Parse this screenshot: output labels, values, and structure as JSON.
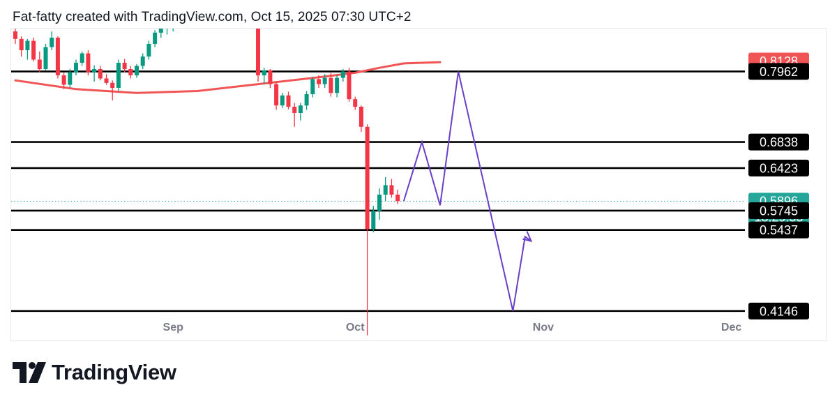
{
  "header": {
    "text": "Fat-fatty created with TradingView.com, Oct 15, 2025 07:30 UTC+2"
  },
  "brand": {
    "name": "TradingView"
  },
  "colors": {
    "up": "#089981",
    "down": "#f23645",
    "ma": "#f05454",
    "path": "#6a3fc8",
    "level": "#000000",
    "text": "#131722",
    "axis_text": "#787b86",
    "current": "#26a69a"
  },
  "chart_data": {
    "type": "candlestick",
    "x_axis": {
      "ticks": [
        "Sep",
        "Oct",
        "Nov",
        "Dec"
      ]
    },
    "y_axis": {
      "scale": "linear",
      "range": [
        0.37,
        0.86
      ]
    },
    "horizontal_levels": [
      0.7962,
      0.6838,
      0.6423,
      0.5745,
      0.5437,
      0.4146
    ],
    "price_labels": [
      {
        "text": "0.8128",
        "value": 0.8128,
        "style": "red"
      },
      {
        "text": "0.7962",
        "value": 0.7962,
        "style": "black"
      },
      {
        "text": "0.6838",
        "value": 0.6838,
        "style": "black"
      },
      {
        "text": "0.6423",
        "value": 0.6423,
        "style": "black"
      },
      {
        "text": "0.5896",
        "value": 0.5896,
        "style": "green",
        "countdown": "18:29:55"
      },
      {
        "text": "0.5745",
        "value": 0.5745,
        "style": "black"
      },
      {
        "text": "0.5437",
        "value": 0.5437,
        "style": "black"
      },
      {
        "text": "0.4146",
        "value": 0.4146,
        "style": "black"
      }
    ],
    "current_price": 0.5896,
    "moving_average": [
      {
        "x": 0,
        "y": 0.782
      },
      {
        "x": 10,
        "y": 0.768
      },
      {
        "x": 20,
        "y": 0.762
      },
      {
        "x": 30,
        "y": 0.765
      },
      {
        "x": 40,
        "y": 0.776
      },
      {
        "x": 50,
        "y": 0.787
      },
      {
        "x": 56,
        "y": 0.794
      },
      {
        "x": 60,
        "y": 0.802
      },
      {
        "x": 64,
        "y": 0.809
      },
      {
        "x": 70,
        "y": 0.811
      }
    ],
    "candles": [
      [
        0.86,
        0.87,
        0.84,
        0.848
      ],
      [
        0.848,
        0.852,
        0.82,
        0.83
      ],
      [
        0.83,
        0.848,
        0.815,
        0.845
      ],
      [
        0.845,
        0.85,
        0.812,
        0.815
      ],
      [
        0.815,
        0.828,
        0.795,
        0.8
      ],
      [
        0.8,
        0.84,
        0.798,
        0.835
      ],
      [
        0.835,
        0.86,
        0.83,
        0.85
      ],
      [
        0.85,
        0.852,
        0.785,
        0.79
      ],
      [
        0.79,
        0.795,
        0.768,
        0.775
      ],
      [
        0.775,
        0.8,
        0.77,
        0.795
      ],
      [
        0.795,
        0.815,
        0.79,
        0.81
      ],
      [
        0.81,
        0.828,
        0.805,
        0.825
      ],
      [
        0.825,
        0.83,
        0.79,
        0.795
      ],
      [
        0.795,
        0.806,
        0.78,
        0.8
      ],
      [
        0.8,
        0.805,
        0.782,
        0.785
      ],
      [
        0.785,
        0.792,
        0.775,
        0.778
      ],
      [
        0.778,
        0.782,
        0.75,
        0.77
      ],
      [
        0.77,
        0.815,
        0.765,
        0.81
      ],
      [
        0.81,
        0.816,
        0.795,
        0.8
      ],
      [
        0.8,
        0.805,
        0.785,
        0.79
      ],
      [
        0.79,
        0.808,
        0.786,
        0.805
      ],
      [
        0.805,
        0.825,
        0.8,
        0.82
      ],
      [
        0.82,
        0.845,
        0.815,
        0.84
      ],
      [
        0.84,
        0.862,
        0.835,
        0.858
      ],
      [
        0.858,
        0.87,
        0.85,
        0.865
      ],
      [
        0.865,
        0.88,
        0.855,
        0.872
      ],
      [
        0.872,
        0.885,
        0.86,
        0.878
      ],
      [
        0.878,
        0.89,
        0.865,
        0.883
      ],
      [
        0.883,
        0.89,
        0.87,
        0.876
      ],
      [
        0.876,
        0.888,
        0.868,
        0.882
      ],
      [
        0.882,
        0.89,
        0.872,
        0.878
      ],
      [
        0.878,
        0.892,
        0.874,
        0.886
      ],
      [
        0.886,
        0.894,
        0.88,
        0.89
      ],
      [
        0.89,
        0.895,
        0.876,
        0.88
      ],
      [
        0.88,
        0.89,
        0.874,
        0.884
      ],
      [
        0.884,
        0.89,
        0.872,
        0.876
      ],
      [
        0.876,
        0.887,
        0.87,
        0.881
      ],
      [
        0.881,
        0.892,
        0.875,
        0.886
      ],
      [
        0.886,
        0.89,
        0.868,
        0.872
      ],
      [
        0.872,
        0.882,
        0.868,
        0.878
      ],
      [
        0.878,
        0.884,
        0.78,
        0.79
      ],
      [
        0.79,
        0.802,
        0.776,
        0.798
      ],
      [
        0.798,
        0.8,
        0.77,
        0.776
      ],
      [
        0.776,
        0.78,
        0.735,
        0.742
      ],
      [
        0.742,
        0.762,
        0.738,
        0.758
      ],
      [
        0.758,
        0.764,
        0.736,
        0.74
      ],
      [
        0.74,
        0.746,
        0.708,
        0.73
      ],
      [
        0.73,
        0.746,
        0.718,
        0.742
      ],
      [
        0.742,
        0.765,
        0.735,
        0.76
      ],
      [
        0.76,
        0.788,
        0.755,
        0.784
      ],
      [
        0.784,
        0.79,
        0.77,
        0.776
      ],
      [
        0.776,
        0.792,
        0.77,
        0.786
      ],
      [
        0.786,
        0.794,
        0.756,
        0.762
      ],
      [
        0.762,
        0.79,
        0.755,
        0.786
      ],
      [
        0.786,
        0.8,
        0.78,
        0.796
      ],
      [
        0.796,
        0.802,
        0.748,
        0.752
      ],
      [
        0.752,
        0.756,
        0.735,
        0.74
      ],
      [
        0.74,
        0.742,
        0.7,
        0.708
      ],
      [
        0.708,
        0.712,
        0.376,
        0.545
      ],
      [
        0.545,
        0.582,
        0.54,
        0.574
      ],
      [
        0.574,
        0.61,
        0.56,
        0.6
      ],
      [
        0.6,
        0.628,
        0.59,
        0.615
      ],
      [
        0.615,
        0.625,
        0.595,
        0.6
      ],
      [
        0.6,
        0.608,
        0.585,
        0.5896
      ]
    ],
    "projection_path": [
      [
        64,
        0.5896
      ],
      [
        67,
        0.6838
      ],
      [
        70,
        0.583
      ],
      [
        73,
        0.7962
      ],
      [
        82,
        0.4146
      ],
      [
        84,
        0.533
      ],
      [
        85,
        0.526
      ]
    ]
  }
}
